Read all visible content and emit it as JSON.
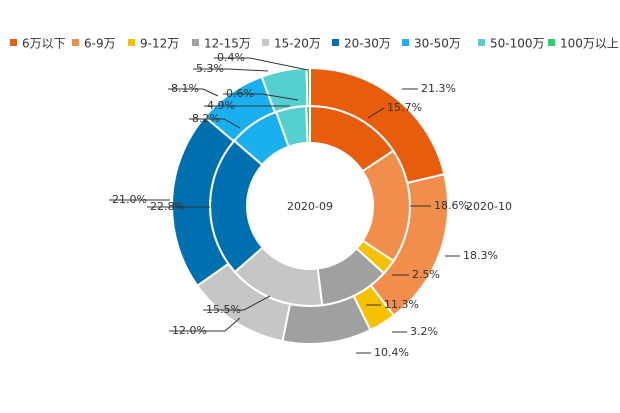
{
  "chart_data": {
    "type": "pie",
    "subtype": "nested-donut",
    "categories": [
      "6万以下",
      "6-9万",
      "9-12万",
      "12-15万",
      "15-20万",
      "20-30万",
      "30-50万",
      "50-100万",
      "100万以上"
    ],
    "colors": [
      "#e85c0d",
      "#f28e4b",
      "#f5c100",
      "#a0a0a0",
      "#c6c6c6",
      "#0070b0",
      "#1ab0f0",
      "#55cfd0",
      "#2ecc71"
    ],
    "series": [
      {
        "name": "2020-09",
        "ring": "inner",
        "values": [
          15.7,
          18.6,
          2.5,
          11.3,
          15.5,
          22.8,
          8.2,
          4.9,
          0.6
        ],
        "labels": [
          "15.7%",
          "18.6%",
          "2.5%",
          "11.3%",
          "15.5%",
          "22.8%",
          "8.2%",
          "4.9%",
          "0.6%"
        ]
      },
      {
        "name": "2020-10",
        "ring": "outer",
        "values": [
          21.3,
          18.3,
          3.2,
          10.4,
          12.0,
          21.0,
          8.1,
          5.3,
          0.4
        ],
        "labels": [
          "21.3%",
          "18.3%",
          "3.2%",
          "10.4%",
          "12.0%",
          "21.0%",
          "8.1%",
          "5.3%",
          "0.4%"
        ]
      }
    ],
    "legend_position": "top",
    "title": "",
    "unit": "%"
  }
}
